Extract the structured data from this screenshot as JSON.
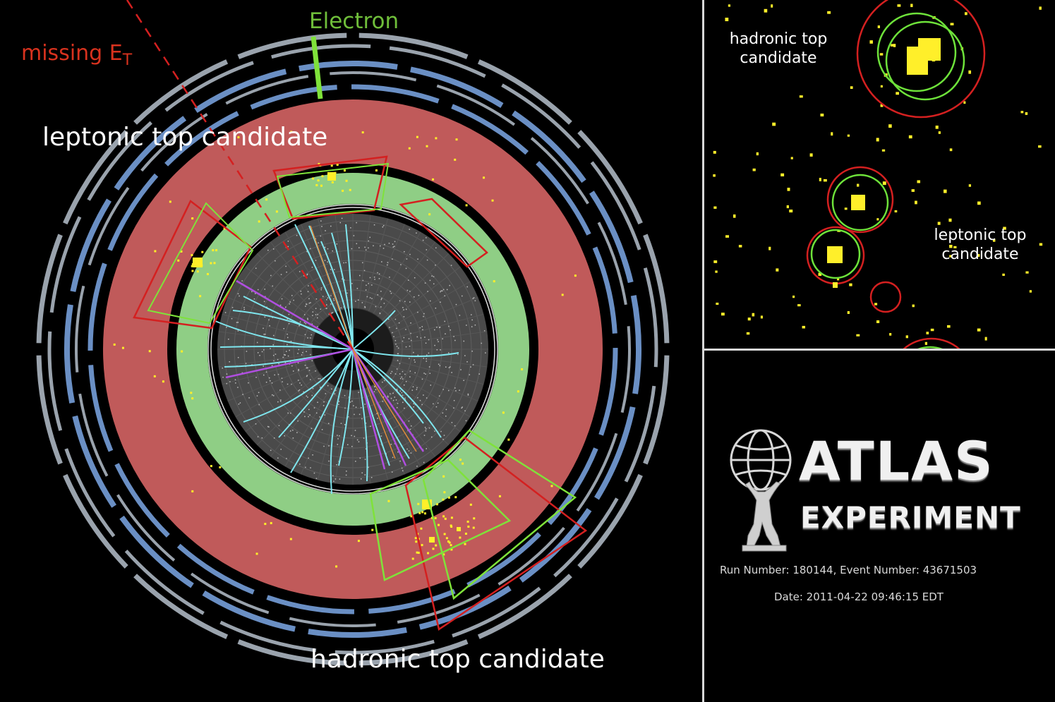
{
  "main": {
    "label_missing_et": "missing E",
    "label_missing_et_sub": "T",
    "label_electron": "Electron",
    "label_leptonic": "leptonic top candidate",
    "label_hadronic": "hadronic top candidate"
  },
  "zoom": {
    "label_hadronic_line1": "hadronic top",
    "label_hadronic_line2": "candidate",
    "label_leptonic_line1": "leptonic top",
    "label_leptonic_line2": "candidate"
  },
  "logo": {
    "word1": "ATLAS",
    "word2": "EXPERIMENT",
    "run_line": "Run Number: 180144, Event Number: 43671503",
    "date_line": "Date: 2011-04-22 09:46:15 EDT"
  },
  "colors": {
    "calorimeter_outer": "#c05a5a",
    "calorimeter_inner": "#8fce85",
    "jet_cone_red": "#d42020",
    "jet_cone_green": "#7fe23a",
    "track_cyan": "#7fe6ee",
    "track_purple": "#b04ee0",
    "muon_blue": "#6a8fc4",
    "muon_grey": "#9aa3ad",
    "energy_yellow": "#ffef2a"
  }
}
